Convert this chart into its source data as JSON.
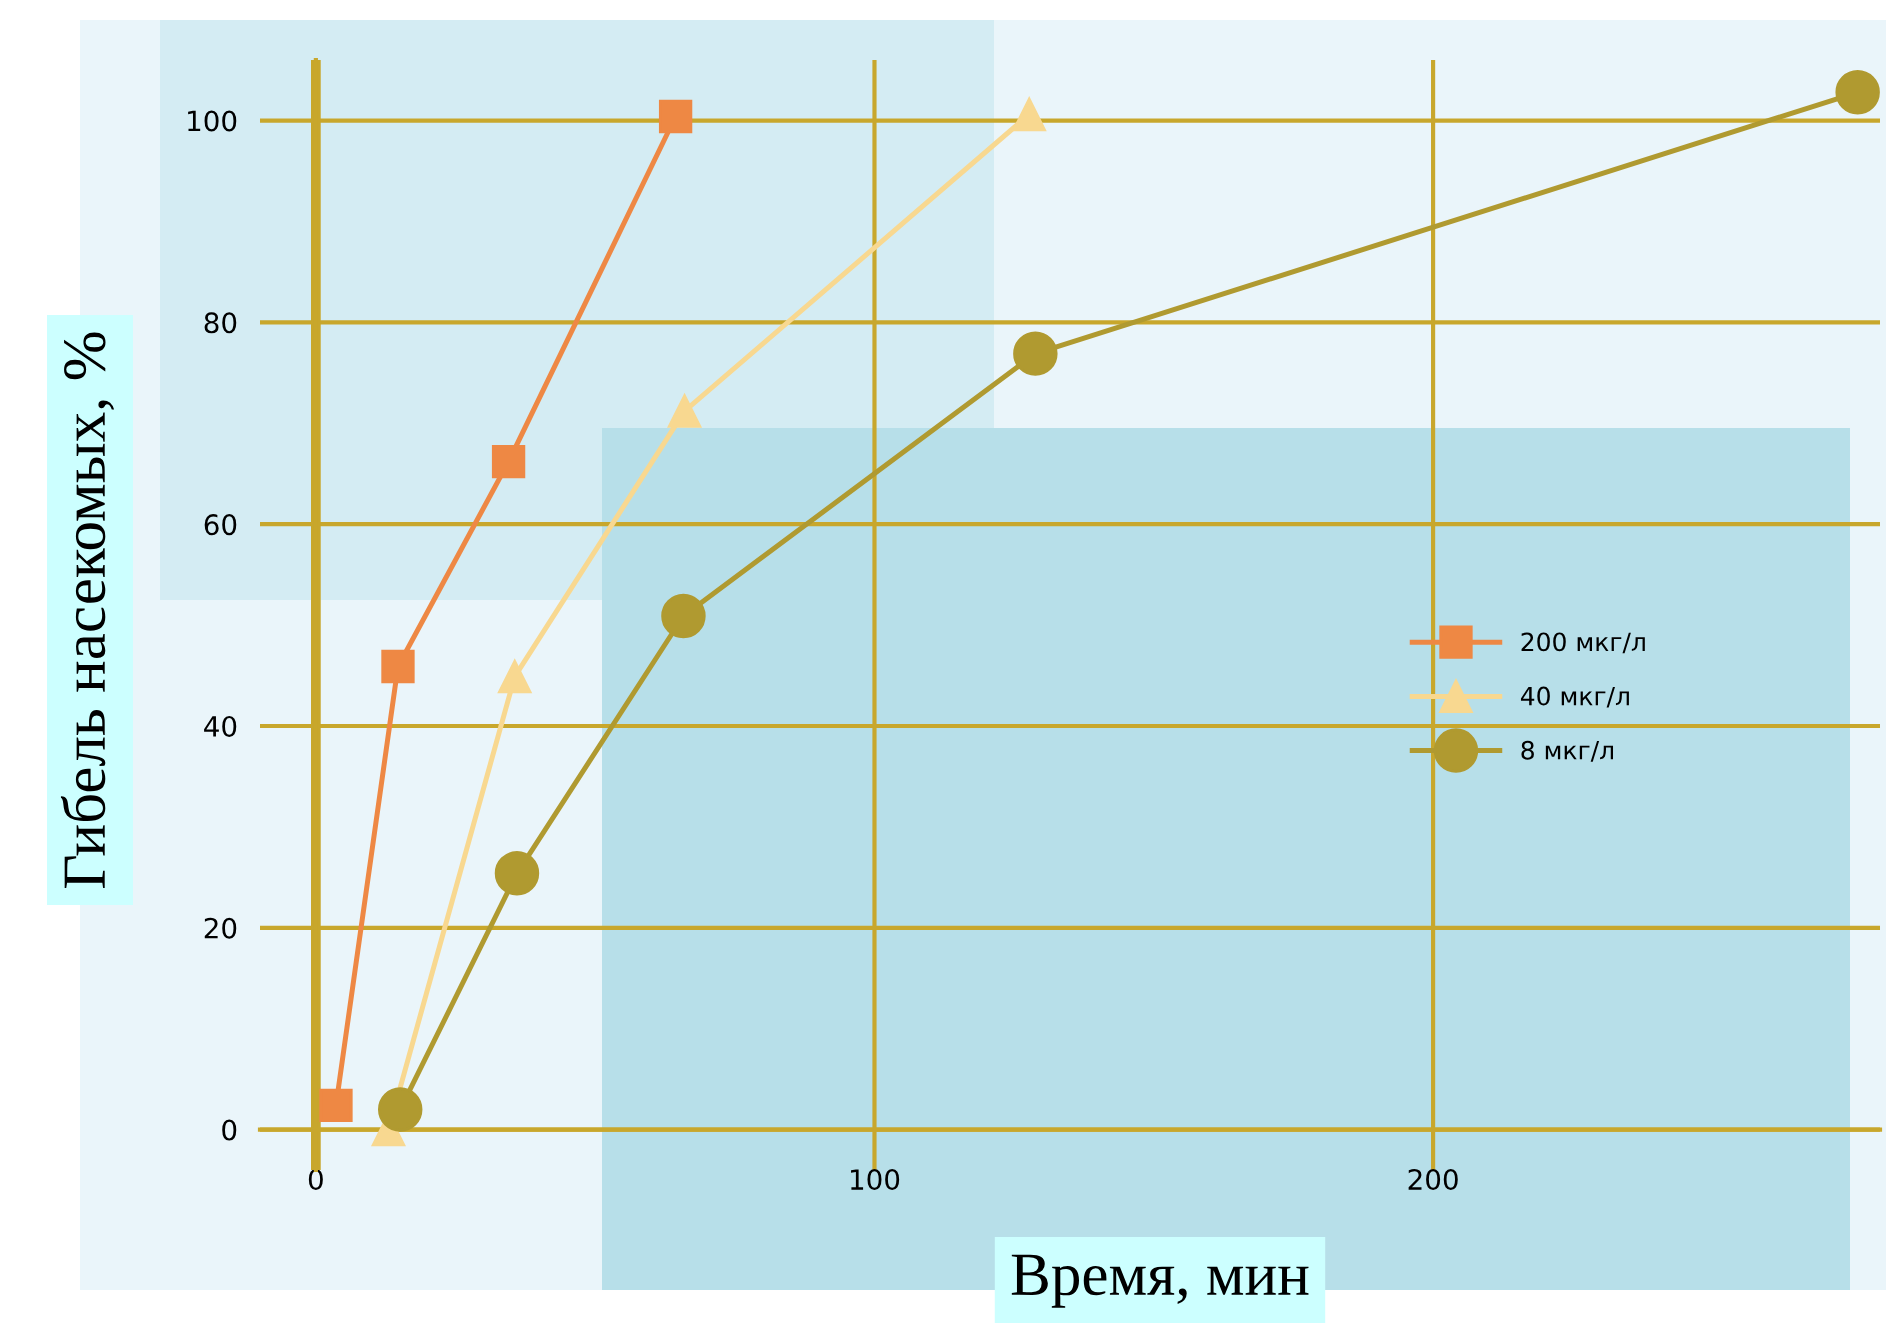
{
  "chart_data": {
    "type": "line",
    "xlabel": "Время, мин",
    "ylabel": "Гибель насекомых, %",
    "xlim": [
      -10,
      280
    ],
    "ylim": [
      -4,
      106
    ],
    "xticks": [
      0,
      100,
      200
    ],
    "yticks": [
      0,
      20,
      40,
      60,
      80,
      100
    ],
    "grid": true,
    "legend": "right",
    "line_style": "solid",
    "ref_lines": [
      {
        "axis": "x",
        "value": 0,
        "color": "#c8a72c"
      }
    ],
    "series": [
      {
        "name": "200 мкг/л",
        "color": "#ee8844",
        "marker": "square",
        "x": [
          3.6,
          14.7,
          34.5,
          64.4
        ],
        "values": [
          2.4,
          45.9,
          66.2,
          100.4
        ]
      },
      {
        "name": "40 мкг/л",
        "color": "#f8d890",
        "marker": "triangle",
        "x": [
          13,
          35.6,
          66,
          127.7
        ],
        "values": [
          0,
          44.9,
          71.2,
          100.6
        ]
      },
      {
        "name": "8 мкг/л",
        "color": "#b09a30",
        "marker": "circle",
        "x": [
          15.1,
          36,
          65.8,
          128.8,
          276
        ],
        "values": [
          2,
          25.4,
          50.9,
          76.9,
          102.8
        ]
      }
    ]
  }
}
